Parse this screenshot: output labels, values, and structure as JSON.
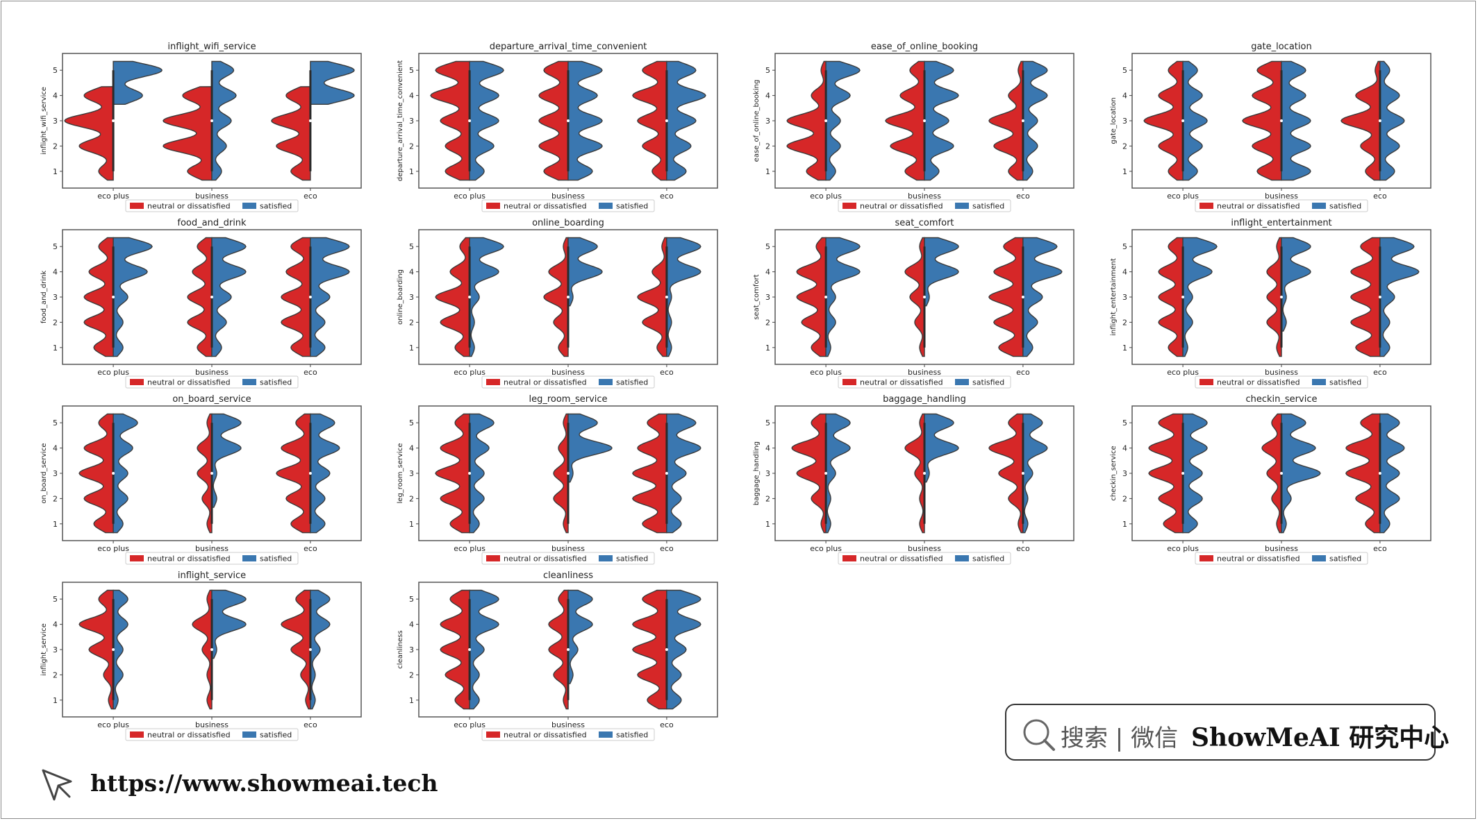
{
  "footer": {
    "search_label": "搜索 | 微信",
    "brand": "ShowMeAI 研究中心",
    "url": "https://www.showmeai.tech",
    "icons": [
      "search-icon",
      "cursor-icon"
    ]
  },
  "colors": {
    "neutral": "#d62728",
    "satisfied": "#3a77b0",
    "axis": "#555555"
  },
  "chart_data": [
    {
      "type": "violin",
      "title": "inflight_wifi_service",
      "ylabel": "inflight_wifi_service",
      "categories": [
        "eco plus",
        "business",
        "eco"
      ],
      "series": [
        {
          "name": "neutral or dissatisfied",
          "values": [
            [
              0.3,
              0.7,
              1.0,
              0.6,
              0.0
            ],
            [
              0.5,
              1.0,
              1.0,
              0.6,
              0.0
            ],
            [
              0.4,
              0.7,
              0.8,
              0.5,
              0.0
            ]
          ]
        },
        {
          "name": "satisfied",
          "values": [
            [
              0,
              0,
              0,
              0.6,
              1.0
            ],
            [
              0.2,
              0.3,
              0.4,
              0.5,
              0.45
            ],
            [
              0,
              0,
              0,
              0.9,
              0.9
            ]
          ]
        }
      ],
      "legend": [
        "neutral or dissatisfied",
        "satisfied"
      ],
      "ylim": [
        0.5,
        5.5
      ]
    },
    {
      "type": "violin",
      "title": "departure_arrival_time_convenient",
      "ylabel": "departure_arrival_time_convenient",
      "categories": [
        "eco plus",
        "business",
        "eco"
      ],
      "series": [
        {
          "name": "neutral or dissatisfied",
          "values": [
            [
              0.5,
              0.5,
              0.6,
              0.8,
              0.7
            ],
            [
              0.5,
              0.6,
              0.6,
              0.6,
              0.5
            ],
            [
              0.3,
              0.5,
              0.6,
              0.7,
              0.5
            ]
          ]
        },
        {
          "name": "satisfied",
          "values": [
            [
              0.3,
              0.5,
              0.6,
              0.6,
              0.7
            ],
            [
              0.5,
              0.7,
              0.7,
              0.6,
              0.7
            ],
            [
              0.4,
              0.5,
              0.6,
              0.8,
              0.6
            ]
          ]
        }
      ],
      "legend": [
        "neutral or dissatisfied",
        "satisfied"
      ],
      "ylim": [
        0.5,
        5.5
      ]
    },
    {
      "type": "violin",
      "title": "ease_of_online_booking",
      "ylabel": "ease_of_online_booking",
      "categories": [
        "eco plus",
        "business",
        "eco"
      ],
      "series": [
        {
          "name": "neutral or dissatisfied",
          "values": [
            [
              0.4,
              0.8,
              0.8,
              0.3,
              0.1
            ],
            [
              0.4,
              0.7,
              0.8,
              0.5,
              0.3
            ],
            [
              0.3,
              0.6,
              0.7,
              0.3,
              0.1
            ]
          ]
        },
        {
          "name": "satisfied",
          "values": [
            [
              0.2,
              0.3,
              0.3,
              0.5,
              0.7
            ],
            [
              0.3,
              0.6,
              0.5,
              0.7,
              0.6
            ],
            [
              0.2,
              0.3,
              0.3,
              0.5,
              0.5
            ]
          ]
        }
      ],
      "legend": [
        "neutral or dissatisfied",
        "satisfied"
      ],
      "ylim": [
        0.5,
        5.5
      ]
    },
    {
      "type": "violin",
      "title": "gate_location",
      "ylabel": "gate_location",
      "categories": [
        "eco plus",
        "business",
        "eco"
      ],
      "series": [
        {
          "name": "neutral or dissatisfied",
          "values": [
            [
              0.3,
              0.5,
              0.8,
              0.5,
              0.3
            ],
            [
              0.5,
              0.6,
              0.8,
              0.6,
              0.5
            ],
            [
              0.3,
              0.4,
              0.8,
              0.5,
              0.1
            ]
          ]
        },
        {
          "name": "satisfied",
          "values": [
            [
              0.3,
              0.4,
              0.5,
              0.4,
              0.3
            ],
            [
              0.6,
              0.6,
              0.6,
              0.5,
              0.5
            ],
            [
              0.3,
              0.4,
              0.5,
              0.4,
              0.2
            ]
          ]
        }
      ],
      "legend": [
        "neutral or dissatisfied",
        "satisfied"
      ],
      "ylim": [
        0.5,
        5.5
      ]
    },
    {
      "type": "violin",
      "title": "food_and_drink",
      "ylabel": "food_and_drink",
      "categories": [
        "eco plus",
        "business",
        "eco"
      ],
      "series": [
        {
          "name": "neutral or dissatisfied",
          "values": [
            [
              0.4,
              0.6,
              0.6,
              0.5,
              0.3
            ],
            [
              0.3,
              0.5,
              0.5,
              0.4,
              0.3
            ],
            [
              0.4,
              0.6,
              0.6,
              0.5,
              0.4
            ]
          ]
        },
        {
          "name": "satisfied",
          "values": [
            [
              0.2,
              0.2,
              0.3,
              0.7,
              0.8
            ],
            [
              0.2,
              0.3,
              0.4,
              0.7,
              0.7
            ],
            [
              0.3,
              0.3,
              0.4,
              0.8,
              0.8
            ]
          ]
        }
      ],
      "legend": [
        "neutral or dissatisfied",
        "satisfied"
      ],
      "ylim": [
        0.5,
        5.5
      ]
    },
    {
      "type": "violin",
      "title": "online_boarding",
      "ylabel": "online_boarding",
      "categories": [
        "eco plus",
        "business",
        "eco"
      ],
      "series": [
        {
          "name": "neutral or dissatisfied",
          "values": [
            [
              0.3,
              0.6,
              0.7,
              0.4,
              0.2
            ],
            [
              0.2,
              0.3,
              0.5,
              0.4,
              0.1
            ],
            [
              0.2,
              0.5,
              0.6,
              0.3,
              0.1
            ]
          ]
        },
        {
          "name": "satisfied",
          "values": [
            [
              0.1,
              0.1,
              0.2,
              0.6,
              0.7
            ],
            [
              0,
              0,
              0.1,
              0.7,
              0.6
            ],
            [
              0.1,
              0.1,
              0.1,
              0.7,
              0.7
            ]
          ]
        }
      ],
      "legend": [
        "neutral or dissatisfied",
        "satisfied"
      ],
      "ylim": [
        0.5,
        5.5
      ]
    },
    {
      "type": "violin",
      "title": "seat_comfort",
      "ylabel": "seat_comfort",
      "categories": [
        "eco plus",
        "business",
        "eco"
      ],
      "series": [
        {
          "name": "neutral or dissatisfied",
          "values": [
            [
              0.3,
              0.5,
              0.6,
              0.6,
              0.2
            ],
            [
              0.1,
              0.2,
              0.3,
              0.4,
              0.1
            ],
            [
              0.5,
              0.6,
              0.7,
              0.6,
              0.4
            ]
          ]
        },
        {
          "name": "satisfied",
          "values": [
            [
              0.1,
              0.2,
              0.2,
              0.7,
              0.7
            ],
            [
              0,
              0,
              0.1,
              0.7,
              0.7
            ],
            [
              0.2,
              0.3,
              0.4,
              0.8,
              0.7
            ]
          ]
        }
      ],
      "legend": [
        "neutral or dissatisfied",
        "satisfied"
      ],
      "ylim": [
        0.5,
        5.5
      ]
    },
    {
      "type": "violin",
      "title": "inflight_entertainment",
      "ylabel": "inflight_entertainment",
      "categories": [
        "eco plus",
        "business",
        "eco"
      ],
      "series": [
        {
          "name": "neutral or dissatisfied",
          "values": [
            [
              0.3,
              0.5,
              0.5,
              0.5,
              0.3
            ],
            [
              0.1,
              0.3,
              0.3,
              0.3,
              0.1
            ],
            [
              0.5,
              0.6,
              0.6,
              0.6,
              0.4
            ]
          ]
        },
        {
          "name": "satisfied",
          "values": [
            [
              0.1,
              0.2,
              0.2,
              0.6,
              0.7
            ],
            [
              0,
              0.1,
              0.1,
              0.6,
              0.6
            ],
            [
              0.2,
              0.2,
              0.3,
              0.8,
              0.7
            ]
          ]
        }
      ],
      "legend": [
        "neutral or dissatisfied",
        "satisfied"
      ],
      "ylim": [
        0.5,
        5.5
      ]
    },
    {
      "type": "violin",
      "title": "on_board_service",
      "ylabel": "on_board_service",
      "categories": [
        "eco plus",
        "business",
        "eco"
      ],
      "series": [
        {
          "name": "neutral or dissatisfied",
          "values": [
            [
              0.4,
              0.6,
              0.7,
              0.6,
              0.3
            ],
            [
              0.1,
              0.2,
              0.3,
              0.3,
              0.1
            ],
            [
              0.4,
              0.5,
              0.7,
              0.6,
              0.3
            ]
          ]
        },
        {
          "name": "satisfied",
          "values": [
            [
              0.2,
              0.3,
              0.3,
              0.4,
              0.5
            ],
            [
              0,
              0.1,
              0.1,
              0.6,
              0.6
            ],
            [
              0.3,
              0.3,
              0.4,
              0.6,
              0.5
            ]
          ]
        }
      ],
      "legend": [
        "neutral or dissatisfied",
        "satisfied"
      ],
      "ylim": [
        0.5,
        5.5
      ]
    },
    {
      "type": "violin",
      "title": "leg_room_service",
      "ylabel": "leg_room_service",
      "categories": [
        "eco plus",
        "business",
        "eco"
      ],
      "series": [
        {
          "name": "neutral or dissatisfied",
          "values": [
            [
              0.4,
              0.6,
              0.7,
              0.6,
              0.3
            ],
            [
              0.1,
              0.3,
              0.3,
              0.2,
              0.1
            ],
            [
              0.5,
              0.7,
              0.7,
              0.6,
              0.4
            ]
          ]
        },
        {
          "name": "satisfied",
          "values": [
            [
              0.2,
              0.3,
              0.3,
              0.4,
              0.5
            ],
            [
              0,
              0,
              0.1,
              0.9,
              0.6
            ],
            [
              0.3,
              0.3,
              0.4,
              0.7,
              0.6
            ]
          ]
        }
      ],
      "legend": [
        "neutral or dissatisfied",
        "satisfied"
      ],
      "ylim": [
        0.5,
        5.5
      ]
    },
    {
      "type": "violin",
      "title": "baggage_handling",
      "ylabel": "baggage_handling",
      "categories": [
        "eco plus",
        "business",
        "eco"
      ],
      "series": [
        {
          "name": "neutral or dissatisfied",
          "values": [
            [
              0.1,
              0.3,
              0.6,
              0.7,
              0.3
            ],
            [
              0.1,
              0.1,
              0.2,
              0.4,
              0.1
            ],
            [
              0.1,
              0.3,
              0.5,
              0.7,
              0.3
            ]
          ]
        },
        {
          "name": "satisfied",
          "values": [
            [
              0.1,
              0.1,
              0.2,
              0.5,
              0.5
            ],
            [
              0,
              0,
              0.1,
              0.7,
              0.6
            ],
            [
              0.1,
              0.1,
              0.2,
              0.5,
              0.4
            ]
          ]
        }
      ],
      "legend": [
        "neutral or dissatisfied",
        "satisfied"
      ],
      "ylim": [
        0.5,
        5.5
      ]
    },
    {
      "type": "violin",
      "title": "checkin_service",
      "ylabel": "checkin_service",
      "categories": [
        "eco plus",
        "business",
        "eco"
      ],
      "series": [
        {
          "name": "neutral or dissatisfied",
          "values": [
            [
              0.4,
              0.5,
              0.7,
              0.7,
              0.5
            ],
            [
              0.1,
              0.2,
              0.3,
              0.4,
              0.2
            ],
            [
              0.3,
              0.5,
              0.7,
              0.7,
              0.4
            ]
          ]
        },
        {
          "name": "satisfied",
          "values": [
            [
              0.3,
              0.4,
              0.4,
              0.5,
              0.5
            ],
            [
              0.1,
              0.2,
              0.8,
              0.7,
              0.5
            ],
            [
              0.2,
              0.4,
              0.4,
              0.5,
              0.4
            ]
          ]
        }
      ],
      "legend": [
        "neutral or dissatisfied",
        "satisfied"
      ],
      "ylim": [
        0.5,
        5.5
      ]
    },
    {
      "type": "violin",
      "title": "inflight_service",
      "ylabel": "inflight_service",
      "categories": [
        "eco plus",
        "business",
        "eco"
      ],
      "series": [
        {
          "name": "neutral or dissatisfied",
          "values": [
            [
              0.1,
              0.2,
              0.5,
              0.7,
              0.3
            ],
            [
              0.1,
              0.1,
              0.2,
              0.4,
              0.1
            ],
            [
              0.1,
              0.2,
              0.4,
              0.6,
              0.3
            ]
          ]
        },
        {
          "name": "satisfied",
          "values": [
            [
              0.1,
              0.2,
              0.2,
              0.3,
              0.3
            ],
            [
              0,
              0,
              0.1,
              0.7,
              0.7
            ],
            [
              0.1,
              0.1,
              0.2,
              0.4,
              0.4
            ]
          ]
        }
      ],
      "legend": [
        "neutral or dissatisfied",
        "satisfied"
      ],
      "ylim": [
        0.5,
        5.5
      ]
    },
    {
      "type": "violin",
      "title": "cleanliness",
      "ylabel": "cleanliness",
      "categories": [
        "eco plus",
        "business",
        "eco"
      ],
      "series": [
        {
          "name": "neutral or dissatisfied",
          "values": [
            [
              0.3,
              0.5,
              0.6,
              0.6,
              0.4
            ],
            [
              0.1,
              0.3,
              0.4,
              0.4,
              0.2
            ],
            [
              0.4,
              0.6,
              0.7,
              0.7,
              0.5
            ]
          ]
        },
        {
          "name": "satisfied",
          "values": [
            [
              0.2,
              0.2,
              0.3,
              0.6,
              0.6
            ],
            [
              0,
              0.1,
              0.2,
              0.5,
              0.5
            ],
            [
              0.3,
              0.3,
              0.4,
              0.7,
              0.7
            ]
          ]
        }
      ],
      "legend": [
        "neutral or dissatisfied",
        "satisfied"
      ],
      "ylim": [
        0.5,
        5.5
      ]
    }
  ]
}
